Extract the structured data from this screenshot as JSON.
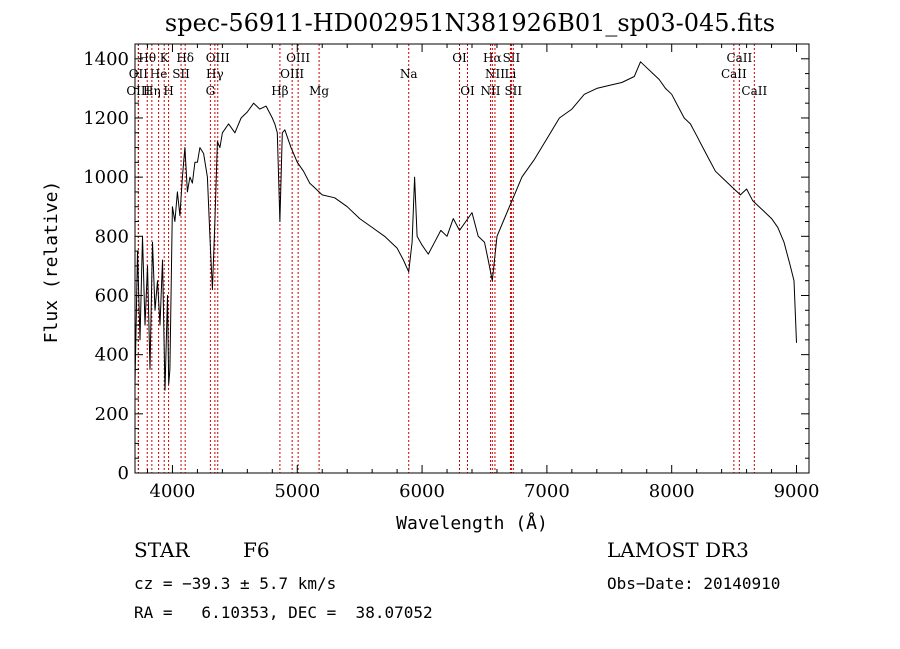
{
  "chart_data": {
    "type": "line",
    "title": "spec-56911-HD002951N381926B01_sp03-045.fits",
    "xlabel": "Wavelength (Å)",
    "ylabel": "Flux (relative)",
    "xlim": [
      3700,
      9100
    ],
    "ylim": [
      0,
      1450
    ],
    "xticks": [
      4000,
      5000,
      6000,
      7000,
      8000,
      9000
    ],
    "yticks": [
      0,
      200,
      400,
      600,
      800,
      1000,
      1200,
      1400
    ],
    "grid": false,
    "line_color": "#000000",
    "marker_color": "#cc0000",
    "series": [
      {
        "x": [
          3700,
          3720,
          3740,
          3760,
          3780,
          3800,
          3820,
          3840,
          3860,
          3880,
          3900,
          3920,
          3940,
          3960,
          3970,
          3980,
          4000,
          4020,
          4040,
          4060,
          4080,
          4100,
          4120,
          4140,
          4160,
          4180,
          4200,
          4220,
          4250,
          4280,
          4300,
          4320,
          4340,
          4360,
          4380,
          4400,
          4450,
          4500,
          4550,
          4600,
          4650,
          4700,
          4750,
          4800,
          4820,
          4840,
          4861,
          4880,
          4900,
          4950,
          5000,
          5050,
          5100,
          5150,
          5200,
          5300,
          5400,
          5500,
          5600,
          5700,
          5800,
          5850,
          5893,
          5920,
          5940,
          5960,
          6000,
          6050,
          6100,
          6150,
          6200,
          6250,
          6300,
          6350,
          6400,
          6450,
          6500,
          6530,
          6563,
          6600,
          6650,
          6700,
          6750,
          6800,
          6900,
          7000,
          7100,
          7200,
          7300,
          7400,
          7500,
          7600,
          7700,
          7750,
          7800,
          7850,
          7900,
          7950,
          8000,
          8050,
          8100,
          8150,
          8200,
          8250,
          8300,
          8350,
          8400,
          8450,
          8500,
          8550,
          8600,
          8650,
          8700,
          8750,
          8800,
          8850,
          8900,
          8950,
          8980,
          9000
        ],
        "y": [
          300,
          750,
          450,
          800,
          500,
          700,
          350,
          780,
          550,
          650,
          500,
          720,
          280,
          600,
          300,
          350,
          900,
          850,
          950,
          870,
          1000,
          1100,
          950,
          1000,
          980,
          1050,
          1050,
          1100,
          1080,
          1000,
          800,
          620,
          850,
          1120,
          1100,
          1150,
          1180,
          1150,
          1200,
          1220,
          1250,
          1230,
          1240,
          1200,
          1180,
          1150,
          850,
          1150,
          1160,
          1100,
          1050,
          1020,
          980,
          960,
          940,
          930,
          900,
          860,
          830,
          800,
          760,
          720,
          680,
          780,
          1000,
          800,
          770,
          740,
          780,
          820,
          800,
          860,
          820,
          850,
          880,
          800,
          780,
          720,
          650,
          800,
          850,
          900,
          950,
          1000,
          1060,
          1130,
          1200,
          1230,
          1280,
          1300,
          1310,
          1320,
          1340,
          1390,
          1370,
          1350,
          1330,
          1300,
          1280,
          1240,
          1200,
          1180,
          1140,
          1100,
          1060,
          1020,
          1000,
          980,
          960,
          940,
          960,
          920,
          900,
          880,
          860,
          830,
          780,
          700,
          650,
          440
        ]
      }
    ],
    "line_markers": [
      {
        "label": "Hθ",
        "wl": 3798,
        "row": 1
      },
      {
        "label": "OII",
        "wl": 3727,
        "row": 2
      },
      {
        "label": "OIII",
        "wl": 3727,
        "row": 3
      },
      {
        "label": "He",
        "wl": 3889,
        "row": 2
      },
      {
        "label": "Hη",
        "wl": 3835,
        "row": 3
      },
      {
        "label": "K",
        "wl": 3934,
        "row": 1
      },
      {
        "label": "H",
        "wl": 3969,
        "row": 3
      },
      {
        "label": "SII",
        "wl": 4069,
        "row": 2
      },
      {
        "label": "Hδ",
        "wl": 4102,
        "row": 1
      },
      {
        "label": "OIII",
        "wl": 4363,
        "row": 1
      },
      {
        "label": "Hγ",
        "wl": 4340,
        "row": 2
      },
      {
        "label": "G",
        "wl": 4304,
        "row": 3
      },
      {
        "label": "Hβ",
        "wl": 4861,
        "row": 3
      },
      {
        "label": "OIII",
        "wl": 5007,
        "row": 1
      },
      {
        "label": "OIII",
        "wl": 4959,
        "row": 2
      },
      {
        "label": "Mg",
        "wl": 5175,
        "row": 3
      },
      {
        "label": "Na",
        "wl": 5893,
        "row": 2
      },
      {
        "label": "OI",
        "wl": 6300,
        "row": 1
      },
      {
        "label": "OI",
        "wl": 6364,
        "row": 3
      },
      {
        "label": "Hα",
        "wl": 6563,
        "row": 1
      },
      {
        "label": "SII",
        "wl": 6716,
        "row": 1
      },
      {
        "label": "NII",
        "wl": 6584,
        "row": 2
      },
      {
        "label": "Li",
        "wl": 6708,
        "row": 2
      },
      {
        "label": "NII",
        "wl": 6548,
        "row": 3
      },
      {
        "label": "SII",
        "wl": 6731,
        "row": 3
      },
      {
        "label": "CaII",
        "wl": 8542,
        "row": 1
      },
      {
        "label": "CaII",
        "wl": 8498,
        "row": 2
      },
      {
        "label": "CaII",
        "wl": 8662,
        "row": 3
      }
    ]
  },
  "info": {
    "object_class": "STAR",
    "subclass": "F6",
    "survey": "LAMOST DR3",
    "cz": "cz = −39.3 ± 5.7 km/s",
    "obs_date": "Obs−Date: 20140910",
    "coords": "RA =   6.10353, DEC =  38.07052"
  }
}
